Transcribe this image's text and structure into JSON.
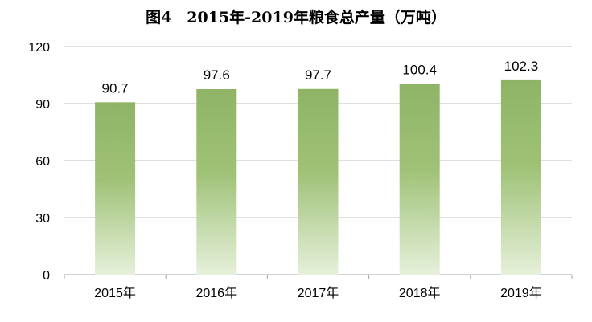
{
  "chart_data": {
    "type": "bar",
    "title": "图4　2015年-2019年粮食总产量（万吨）",
    "categories": [
      "2015年",
      "2016年",
      "2017年",
      "2018年",
      "2019年"
    ],
    "values": [
      90.7,
      97.6,
      97.7,
      100.4,
      102.3
    ],
    "data_labels": [
      "90.7",
      "97.6",
      "97.7",
      "100.4",
      "102.3"
    ],
    "ylim": [
      0,
      120
    ],
    "yticks": [
      0,
      30,
      60,
      90,
      120
    ],
    "grid": true,
    "legend": "none",
    "colors": {
      "bar_top": "#8fb466",
      "bar_mid": "#9fc277",
      "bar_bottom": "#e6f0da",
      "grid": "#bfbfbf"
    }
  }
}
